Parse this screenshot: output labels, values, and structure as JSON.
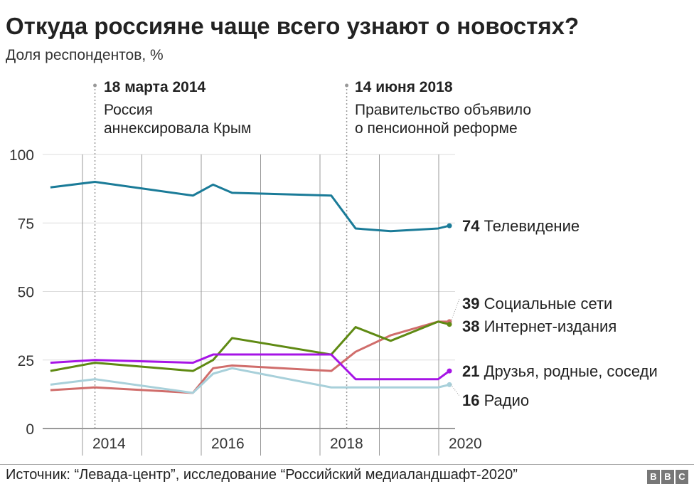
{
  "title": "Откуда россияне чаще всего узнают о новостях?",
  "subtitle": "Доля респондентов, %",
  "annotations": [
    {
      "date": "18 марта 2014",
      "text": "Россия\nаннексировала Крым",
      "x": 2014.21
    },
    {
      "date": "14 июня 2018",
      "text": "Правительство объявило\nо пенсионной реформе",
      "x": 2018.45
    }
  ],
  "source": "Источник: “Левада-центр”, исследование “Российский медиаландшафт-2020”",
  "logo": [
    "B",
    "B",
    "C"
  ],
  "chart_data": {
    "type": "line",
    "title": "Откуда россияне чаще всего узнают о новостях?",
    "ylabel": "Доля респондентов, %",
    "ylim": [
      0,
      100
    ],
    "xlim": [
      2013.0,
      2020.3
    ],
    "yticks": [
      0,
      25,
      50,
      75,
      100
    ],
    "xticks": [
      {
        "value": 2014,
        "label": "2014"
      },
      {
        "value": 2016,
        "label": "2016"
      },
      {
        "value": 2018,
        "label": "2018"
      },
      {
        "value": 2020,
        "label": "2020"
      }
    ],
    "x": [
      2013.46,
      2014.21,
      2015.86,
      2016.2,
      2016.52,
      2018.19,
      2018.6,
      2019.19,
      2019.99,
      2020.18
    ],
    "series": [
      {
        "name": "Телевидение",
        "final": "74",
        "color": "#1a7b98",
        "values": [
          88,
          90,
          85,
          89,
          86,
          85,
          73,
          72,
          73,
          74
        ]
      },
      {
        "name": "Социальные сети",
        "final": "39",
        "color": "#d06d6b",
        "values": [
          14,
          15,
          13,
          22,
          23,
          21,
          28,
          34,
          39,
          39
        ]
      },
      {
        "name": "Интернет-издания",
        "final": "38",
        "color": "#5f8a13",
        "values": [
          21,
          24,
          21,
          25,
          33,
          27,
          37,
          32,
          39,
          38
        ]
      },
      {
        "name": "Друзья, родные, соседи",
        "final": "21",
        "color": "#a614e6",
        "values": [
          24,
          25,
          24,
          27,
          27,
          27,
          18,
          18,
          18,
          21
        ]
      },
      {
        "name": "Радио",
        "final": "16",
        "color": "#a8d0da",
        "values": [
          16,
          18,
          13,
          20,
          22,
          15,
          15,
          15,
          15,
          16
        ]
      }
    ]
  }
}
